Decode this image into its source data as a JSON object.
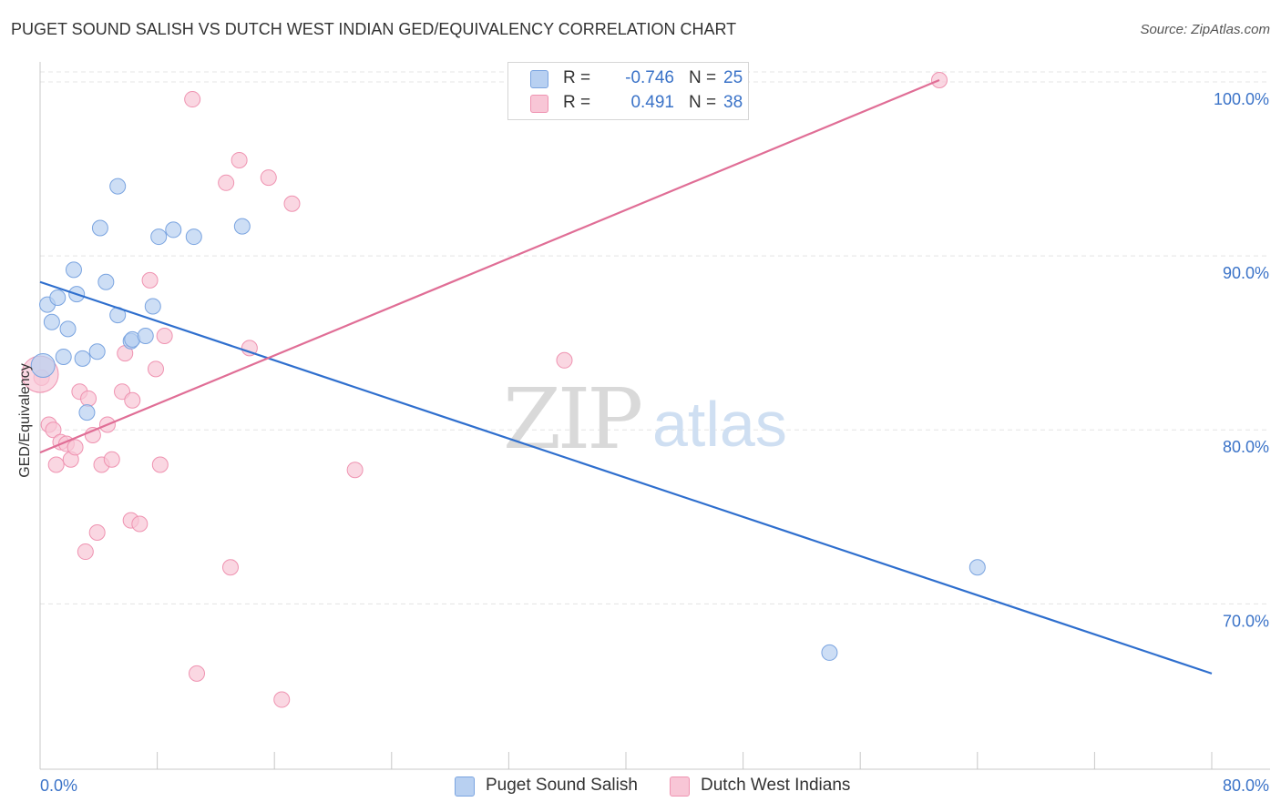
{
  "title": "PUGET SOUND SALISH VS DUTCH WEST INDIAN GED/EQUIVALENCY CORRELATION CHART",
  "source": "Source: ZipAtlas.com",
  "watermark": {
    "zip": "ZIP",
    "atlas": "atlas"
  },
  "legend": {
    "series1": {
      "r_label": "R =",
      "r_value": "-0.746",
      "n_label": "N =",
      "n_value": "25"
    },
    "series2": {
      "r_label": "R =",
      "r_value": "0.491",
      "n_label": "N =",
      "n_value": "38"
    }
  },
  "chart_data": {
    "type": "scatter",
    "title": "PUGET SOUND SALISH VS DUTCH WEST INDIAN GED/EQUIVALENCY CORRELATION CHART",
    "xlabel": "",
    "ylabel": "GED/Equivalency",
    "xlim": [
      0,
      80
    ],
    "ylim": [
      60.5,
      101.2
    ],
    "x_tick_labels": [
      "0.0%",
      "80.0%"
    ],
    "y_ticks": [
      70,
      80,
      90,
      100
    ],
    "y_tick_labels": [
      "70.0%",
      "80.0%",
      "90.0%",
      "100.0%"
    ],
    "grid": true,
    "colors": {
      "blue_fill": "#b8d0f1",
      "blue_stroke": "#7aa4e0",
      "blue_line": "#2f6fce",
      "pink_fill": "#f8c6d6",
      "pink_stroke": "#ef93b1",
      "pink_line": "#e06e96",
      "value_text": "#3b73c8",
      "grid": "#e4e4e4"
    },
    "series": [
      {
        "name": "Puget Sound Salish",
        "color": "blue",
        "points": [
          [
            0.2,
            83.7
          ],
          [
            0.5,
            87.2
          ],
          [
            0.8,
            86.2
          ],
          [
            1.2,
            87.6
          ],
          [
            1.6,
            84.2
          ],
          [
            1.9,
            85.8
          ],
          [
            2.3,
            89.2
          ],
          [
            2.5,
            87.8
          ],
          [
            2.9,
            84.1
          ],
          [
            3.2,
            81.0
          ],
          [
            3.9,
            84.5
          ],
          [
            4.1,
            91.6
          ],
          [
            4.5,
            88.5
          ],
          [
            5.3,
            86.6
          ],
          [
            5.3,
            94.0
          ],
          [
            6.2,
            85.1
          ],
          [
            6.3,
            85.2
          ],
          [
            7.2,
            85.4
          ],
          [
            7.7,
            87.1
          ],
          [
            8.1,
            91.1
          ],
          [
            9.1,
            91.5
          ],
          [
            10.5,
            91.1
          ],
          [
            13.8,
            91.7
          ],
          [
            53.9,
            67.2
          ],
          [
            64.0,
            72.1
          ]
        ],
        "trend": {
          "x": [
            0,
            80
          ],
          "y": [
            88.5,
            66.0
          ]
        },
        "r": -0.746,
        "n": 25
      },
      {
        "name": "Dutch West Indians",
        "color": "pink",
        "points": [
          [
            0.1,
            83.0
          ],
          [
            0.6,
            80.3
          ],
          [
            0.9,
            80.0
          ],
          [
            1.1,
            78.0
          ],
          [
            1.4,
            79.3
          ],
          [
            1.8,
            79.2
          ],
          [
            2.1,
            78.3
          ],
          [
            2.4,
            79.0
          ],
          [
            2.7,
            82.2
          ],
          [
            3.1,
            73.0
          ],
          [
            3.3,
            81.8
          ],
          [
            3.6,
            79.7
          ],
          [
            3.9,
            74.1
          ],
          [
            4.2,
            78.0
          ],
          [
            4.6,
            80.3
          ],
          [
            4.9,
            78.3
          ],
          [
            5.6,
            82.2
          ],
          [
            5.8,
            84.4
          ],
          [
            6.2,
            74.8
          ],
          [
            6.3,
            81.7
          ],
          [
            6.8,
            74.6
          ],
          [
            7.5,
            88.6
          ],
          [
            7.9,
            83.5
          ],
          [
            8.2,
            78.0
          ],
          [
            8.5,
            85.4
          ],
          [
            10.4,
            99.0
          ],
          [
            10.7,
            66.0
          ],
          [
            12.7,
            94.2
          ],
          [
            13.0,
            72.1
          ],
          [
            13.6,
            95.5
          ],
          [
            14.3,
            84.7
          ],
          [
            15.6,
            94.5
          ],
          [
            16.5,
            64.5
          ],
          [
            17.2,
            93.0
          ],
          [
            21.5,
            77.7
          ],
          [
            35.8,
            84.0
          ],
          [
            61.4,
            100.1
          ],
          [
            0.0,
            83.2
          ]
        ],
        "trend": {
          "x": [
            0,
            61.4
          ],
          "y": [
            78.7,
            100.1
          ]
        },
        "r": 0.491,
        "n": 38
      }
    ]
  }
}
